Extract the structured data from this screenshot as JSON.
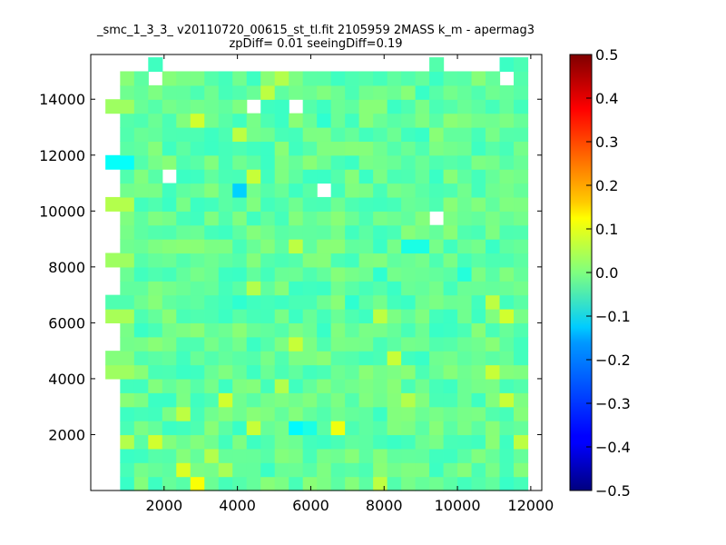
{
  "chart_data": {
    "type": "heatmap",
    "title": "_smc_1_3_3_ v20110720_00615_st_tl.fit 2105959 2MASS k_m - apermag3",
    "subtitle": "zpDiff= 0.01 seeingDiff=0.19",
    "colormap": "jet",
    "xlim": [
      0,
      12300
    ],
    "ylim": [
      0,
      15600
    ],
    "x_ticks": [
      2000,
      4000,
      6000,
      8000,
      10000,
      12000
    ],
    "y_ticks": [
      2000,
      4000,
      6000,
      8000,
      10000,
      12000,
      14000
    ],
    "x_tick_labels": [
      "2000",
      "4000",
      "6000",
      "8000",
      "10000",
      "12000"
    ],
    "y_tick_labels": [
      "2000",
      "4000",
      "6000",
      "8000",
      "10000",
      "12000",
      "14000"
    ],
    "colorbar": {
      "range": [
        -0.5,
        0.5
      ],
      "ticks": [
        0.5,
        0.4,
        0.3,
        0.2,
        0.1,
        0.0,
        -0.1,
        -0.2,
        -0.3,
        -0.4,
        -0.5
      ],
      "tick_labels": [
        "0.5",
        "0.4",
        "0.3",
        "0.2",
        "0.1",
        "0.0",
        "−0.1",
        "−0.2",
        "−0.3",
        "−0.4",
        "−0.5"
      ]
    },
    "bins": {
      "x_start": 0,
      "x_step": 375,
      "n_x": 33,
      "y_start": 0,
      "y_step": 500,
      "n_y": 31,
      "base_value": -0.03,
      "full_rows_col_range": [
        4,
        30
      ],
      "row_extents": {
        "6": [
          4,
          32
        ],
        "7": [
          4,
          32
        ],
        "8": [
          0,
          32
        ],
        "9": [
          0,
          31
        ],
        "10": [
          4,
          32
        ],
        "11": [
          4,
          32
        ],
        "12": [
          0,
          32
        ],
        "13": [
          0,
          32
        ],
        "14": [
          4,
          32
        ],
        "15": [
          4,
          32
        ],
        "16": [
          0,
          32
        ],
        "17": [
          4,
          31
        ],
        "18": [
          4,
          31
        ],
        "19": [
          4,
          32
        ],
        "20": [
          0,
          32
        ],
        "21": [
          4,
          31
        ],
        "22": [
          4,
          32
        ],
        "23": [
          0,
          31
        ],
        "24": [
          4,
          32
        ],
        "25": [
          4,
          31
        ],
        "26": [
          4,
          31
        ],
        "27": [
          0,
          31
        ],
        "28": [
          4,
          31
        ]
      },
      "holes": [
        [
          29,
          22
        ],
        [
          29,
          28
        ],
        [
          30,
          26
        ],
        [
          14,
          21
        ],
        [
          12,
          27
        ],
        [
          9,
          27
        ],
        [
          22,
          19
        ],
        [
          3,
          22
        ],
        [
          5,
          30
        ],
        [
          8,
          30
        ],
        [
          11,
          30
        ],
        [
          4,
          30
        ],
        [
          2,
          29
        ],
        [
          27,
          29
        ],
        [
          26,
          30
        ],
        [
          23,
          30
        ],
        [
          25,
          30
        ],
        [
          24,
          30
        ],
        [
          21,
          30
        ],
        [
          20,
          30
        ],
        [
          19,
          30
        ],
        [
          18,
          30
        ],
        [
          17,
          30
        ],
        [
          16,
          30
        ],
        [
          15,
          30
        ],
        [
          14,
          30
        ],
        [
          13,
          30
        ],
        [
          12,
          30
        ],
        [
          10,
          30
        ],
        [
          9,
          30
        ],
        [
          7,
          30
        ],
        [
          6,
          30
        ],
        [
          3,
          30
        ]
      ],
      "cells": [
        {
          "col": 0,
          "row": 3,
          "value": 0.05
        },
        {
          "col": 0,
          "row": 8,
          "value": 0.03
        },
        {
          "col": 0,
          "row": 12,
          "value": 0.04
        },
        {
          "col": 0,
          "row": 16,
          "value": 0.03
        },
        {
          "col": 0,
          "row": 20,
          "value": 0.05
        },
        {
          "col": 0,
          "row": 23,
          "value": -0.12
        },
        {
          "col": 0,
          "row": 27,
          "value": 0.03
        },
        {
          "col": 2,
          "row": 3,
          "value": 0.08
        },
        {
          "col": 4,
          "row": 1,
          "value": 0.09
        },
        {
          "col": 5,
          "row": 0,
          "value": 0.12
        },
        {
          "col": 4,
          "row": 5,
          "value": 0.06
        },
        {
          "col": 6,
          "row": 2,
          "value": 0.05
        },
        {
          "col": 7,
          "row": 6,
          "value": 0.08
        },
        {
          "col": 9,
          "row": 4,
          "value": 0.07
        },
        {
          "col": 9,
          "row": 22,
          "value": 0.07
        },
        {
          "col": 8,
          "row": 25,
          "value": 0.06
        },
        {
          "col": 5,
          "row": 26,
          "value": 0.08
        },
        {
          "col": 10,
          "row": 28,
          "value": 0.06
        },
        {
          "col": 11,
          "row": 29,
          "value": 0.05
        },
        {
          "col": 9,
          "row": 14,
          "value": 0.05
        },
        {
          "col": 12,
          "row": 17,
          "value": 0.06
        },
        {
          "col": 12,
          "row": 10,
          "value": 0.07
        },
        {
          "col": 11,
          "row": 7,
          "value": 0.05
        },
        {
          "col": 7,
          "row": 1,
          "value": 0.04
        },
        {
          "col": 8,
          "row": 21,
          "value": -0.17
        },
        {
          "col": 12,
          "row": 4,
          "value": -0.13
        },
        {
          "col": 8,
          "row": 13,
          "value": -0.08
        },
        {
          "col": 13,
          "row": 4,
          "value": -0.1
        },
        {
          "col": 14,
          "row": 11,
          "value": -0.07
        },
        {
          "col": 14,
          "row": 26,
          "value": -0.08
        },
        {
          "col": 15,
          "row": 4,
          "value": 0.11
        },
        {
          "col": 16,
          "row": 13,
          "value": -0.08
        },
        {
          "col": 17,
          "row": 25,
          "value": -0.06
        },
        {
          "col": 18,
          "row": 0,
          "value": 0.06
        },
        {
          "col": 18,
          "row": 12,
          "value": 0.06
        },
        {
          "col": 18,
          "row": 15,
          "value": -0.08
        },
        {
          "col": 20,
          "row": 17,
          "value": -0.1
        },
        {
          "col": 20,
          "row": 6,
          "value": 0.05
        },
        {
          "col": 19,
          "row": 9,
          "value": 0.07
        },
        {
          "col": 21,
          "row": 17,
          "value": -0.1
        },
        {
          "col": 21,
          "row": 25,
          "value": -0.07
        },
        {
          "col": 22,
          "row": 11,
          "value": -0.07
        },
        {
          "col": 24,
          "row": 15,
          "value": -0.09
        },
        {
          "col": 26,
          "row": 13,
          "value": 0.06
        },
        {
          "col": 26,
          "row": 8,
          "value": 0.07
        },
        {
          "col": 27,
          "row": 12,
          "value": 0.08
        },
        {
          "col": 27,
          "row": 6,
          "value": 0.07
        },
        {
          "col": 28,
          "row": 3,
          "value": 0.06
        },
        {
          "col": 29,
          "row": 10,
          "value": -0.07
        },
        {
          "col": 30,
          "row": 9,
          "value": -0.17
        },
        {
          "col": 31,
          "row": 15,
          "value": -0.17
        },
        {
          "col": 32,
          "row": 15,
          "value": -0.22
        },
        {
          "col": 33,
          "row": 15,
          "value": -0.22
        },
        {
          "col": 31,
          "row": 3,
          "value": 0.12
        },
        {
          "col": 32,
          "row": 10,
          "value": 0.06
        },
        {
          "col": 33,
          "row": 9,
          "value": 0.08
        },
        {
          "col": 34,
          "row": 19,
          "value": -0.09
        },
        {
          "col": 35,
          "row": 10,
          "value": -0.09
        },
        {
          "col": 35,
          "row": 18,
          "value": 0.04
        },
        {
          "col": 36,
          "row": 8,
          "value": -0.14
        },
        {
          "col": 37,
          "row": 4,
          "value": 0.06
        },
        {
          "col": 37,
          "row": 14,
          "value": -0.06
        },
        {
          "col": 38,
          "row": 10,
          "value": 0.05
        },
        {
          "col": 39,
          "row": 23,
          "value": -0.14
        },
        {
          "col": 39,
          "row": 4,
          "value": -0.1
        },
        {
          "col": 40,
          "row": 2,
          "value": -0.05
        },
        {
          "col": 41,
          "row": 12,
          "value": -0.08
        },
        {
          "col": 42,
          "row": 10,
          "value": 0.08
        },
        {
          "col": 43,
          "row": 14,
          "value": -0.08
        },
        {
          "col": 43,
          "row": 24,
          "value": -0.09
        },
        {
          "col": 44,
          "row": 23,
          "value": -0.14
        }
      ]
    }
  }
}
